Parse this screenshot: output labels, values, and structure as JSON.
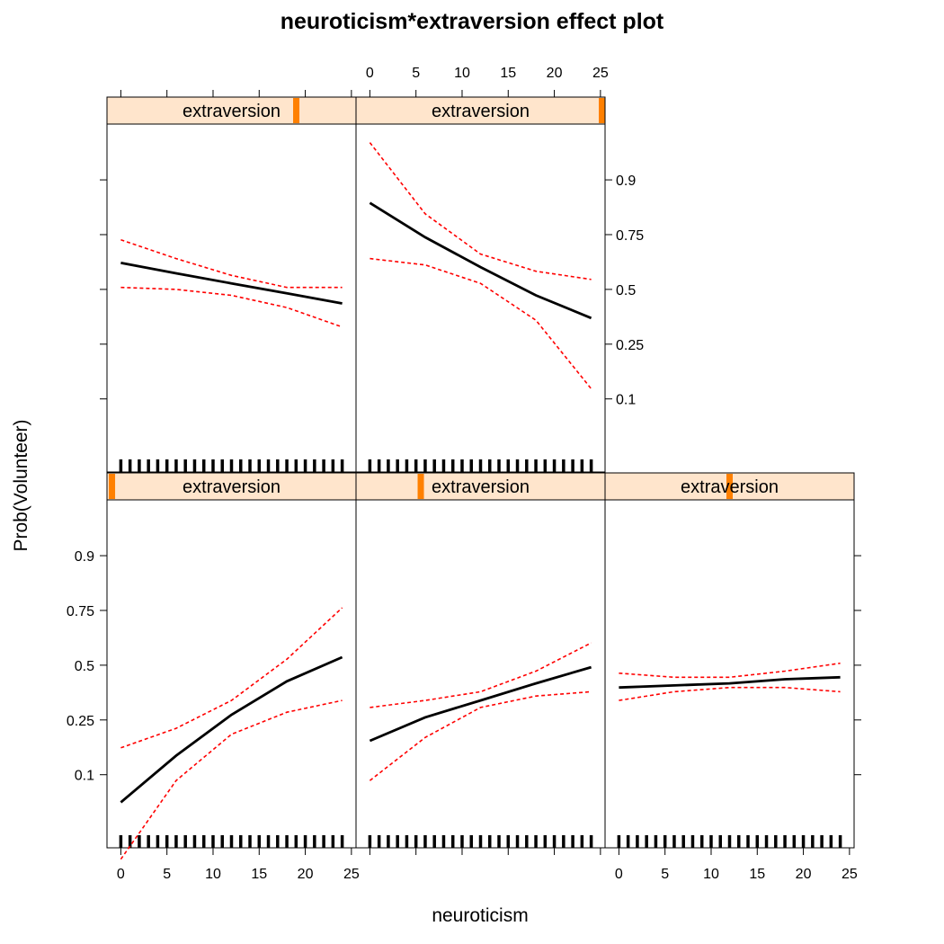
{
  "chart_data": {
    "type": "line",
    "title": "neuroticism*extraversion effect plot",
    "xlabel": "neuroticism",
    "ylabel": "Prob(Volunteer)",
    "x_ticks": [
      0,
      5,
      10,
      15,
      20,
      25
    ],
    "y_ticks": [
      0.1,
      0.25,
      0.5,
      0.75,
      0.9
    ],
    "y_tick_labels": [
      "0.1",
      "0.25",
      "0.5",
      "0.75",
      "0.9"
    ],
    "y_scale": "logit",
    "xlim": [
      -1.5,
      25.5
    ],
    "ylim": [
      0.025,
      0.965
    ],
    "rug_x": [
      0,
      1,
      2,
      3,
      4,
      5,
      6,
      7,
      8,
      9,
      10,
      11,
      12,
      13,
      14,
      15,
      16,
      17,
      18,
      19,
      20,
      21,
      22,
      23,
      24
    ],
    "colors": {
      "fit": "#000000",
      "ci": "#ff0000",
      "strip_bg": "#ffe5cc",
      "strip_marker": "#ff8000"
    },
    "panels": [
      {
        "strip": "extraversion",
        "extraversion_position": 0.02,
        "x": [
          0,
          6,
          12,
          18,
          24
        ],
        "fit": [
          0.06,
          0.14,
          0.27,
          0.42,
          0.54
        ],
        "lower": [
          0.02,
          0.09,
          0.2,
          0.28,
          0.33
        ],
        "upper": [
          0.16,
          0.22,
          0.33,
          0.53,
          0.76
        ]
      },
      {
        "strip": "extraversion",
        "extraversion_position": 0.26,
        "x": [
          0,
          6,
          12,
          18,
          24
        ],
        "fit": [
          0.18,
          0.26,
          0.33,
          0.41,
          0.49
        ],
        "lower": [
          0.09,
          0.19,
          0.3,
          0.35,
          0.37
        ],
        "upper": [
          0.3,
          0.33,
          0.37,
          0.47,
          0.61
        ]
      },
      {
        "strip": "extraversion",
        "extraversion_position": 0.5,
        "x": [
          0,
          6,
          12,
          18,
          24
        ],
        "fit": [
          0.39,
          0.4,
          0.41,
          0.43,
          0.44
        ],
        "lower": [
          0.33,
          0.37,
          0.39,
          0.39,
          0.37
        ],
        "upper": [
          0.46,
          0.44,
          0.44,
          0.47,
          0.51
        ]
      },
      {
        "strip": "extraversion",
        "extraversion_position": 0.76,
        "x": [
          0,
          6,
          12,
          18,
          24
        ],
        "fit": [
          0.63,
          0.58,
          0.53,
          0.48,
          0.43
        ],
        "lower": [
          0.51,
          0.5,
          0.47,
          0.41,
          0.32
        ],
        "upper": [
          0.73,
          0.65,
          0.57,
          0.51,
          0.51
        ]
      },
      {
        "strip": "extraversion",
        "extraversion_position": 0.995,
        "x": [
          0,
          6,
          12,
          18,
          24
        ],
        "fit": [
          0.85,
          0.74,
          0.61,
          0.47,
          0.36
        ],
        "lower": [
          0.65,
          0.62,
          0.53,
          0.35,
          0.12
        ],
        "upper": [
          0.95,
          0.82,
          0.67,
          0.59,
          0.55
        ]
      }
    ]
  }
}
